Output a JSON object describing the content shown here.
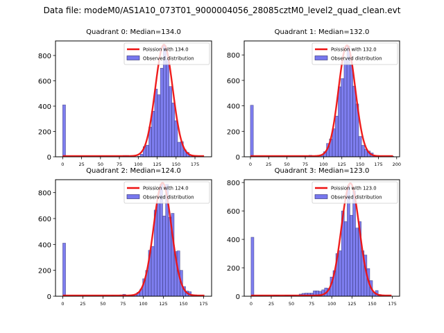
{
  "figure": {
    "suptitle": "Data file: modeM0/AS1A10_073T01_9000004056_28085cztM0_level2_quad_clean.evt"
  },
  "colors": {
    "bar_fill": "#7777ee",
    "bar_edge": "#2a2a6a",
    "fit_line": "#ee1111"
  },
  "chart_data": [
    {
      "type": "bar",
      "title": "Quadrant 0: Median=134.0",
      "xlabel": "",
      "ylabel": "",
      "xlim": [
        -9.5,
        197
      ],
      "ylim": [
        0,
        915
      ],
      "xticks": [
        0,
        25,
        50,
        75,
        100,
        125,
        150,
        175
      ],
      "yticks": [
        0,
        200,
        400,
        600,
        800
      ],
      "legend": {
        "placement": "top-right",
        "entries": [
          "Poission with 134.0",
          "Observed distribution"
        ]
      },
      "bin_width": 3.8,
      "bins": [
        {
          "x": 0,
          "v": 410
        },
        {
          "x": 79.8,
          "v": 10
        },
        {
          "x": 83.6,
          "v": 10
        },
        {
          "x": 98.8,
          "v": 4
        },
        {
          "x": 102.6,
          "v": 20
        },
        {
          "x": 106.4,
          "v": 80
        },
        {
          "x": 110.2,
          "v": 92
        },
        {
          "x": 114.0,
          "v": 235
        },
        {
          "x": 117.8,
          "v": 360
        },
        {
          "x": 121.6,
          "v": 535
        },
        {
          "x": 125.4,
          "v": 490
        },
        {
          "x": 129.2,
          "v": 700
        },
        {
          "x": 133.0,
          "v": 880
        },
        {
          "x": 136.8,
          "v": 770
        },
        {
          "x": 140.6,
          "v": 555
        },
        {
          "x": 144.4,
          "v": 425
        },
        {
          "x": 148.2,
          "v": 285
        },
        {
          "x": 152.0,
          "v": 115
        },
        {
          "x": 155.8,
          "v": 120
        },
        {
          "x": 159.6,
          "v": 55
        },
        {
          "x": 163.4,
          "v": 35
        },
        {
          "x": 167.2,
          "v": 10
        },
        {
          "x": 171.0,
          "v": 5
        }
      ],
      "fit": {
        "label": "Poission with 134.0",
        "mean": 134.0,
        "peak": 880,
        "x_range": [
          0,
          187
        ]
      }
    },
    {
      "type": "bar",
      "title": "Quadrant 1: Median=132.0",
      "xlabel": "",
      "ylabel": "",
      "xlim": [
        -8.5,
        204
      ],
      "ylim": [
        0,
        910
      ],
      "xticks": [
        0,
        25,
        50,
        75,
        100,
        125,
        150,
        175,
        200
      ],
      "yticks": [
        0,
        200,
        400,
        600,
        800
      ],
      "legend": {
        "placement": "top-right",
        "entries": [
          "Poission with 132.0",
          "Observed distribution"
        ]
      },
      "bin_width": 4.0,
      "bins": [
        {
          "x": 0,
          "v": 405
        },
        {
          "x": 68,
          "v": 5
        },
        {
          "x": 72,
          "v": 5
        },
        {
          "x": 80,
          "v": 12
        },
        {
          "x": 96,
          "v": 10
        },
        {
          "x": 100,
          "v": 40
        },
        {
          "x": 104,
          "v": 105
        },
        {
          "x": 108,
          "v": 140
        },
        {
          "x": 112,
          "v": 220
        },
        {
          "x": 116,
          "v": 320
        },
        {
          "x": 120,
          "v": 550
        },
        {
          "x": 124,
          "v": 615
        },
        {
          "x": 128,
          "v": 760
        },
        {
          "x": 132,
          "v": 870
        },
        {
          "x": 136,
          "v": 720
        },
        {
          "x": 140,
          "v": 555
        },
        {
          "x": 144,
          "v": 415
        },
        {
          "x": 148,
          "v": 160
        },
        {
          "x": 152,
          "v": 90
        },
        {
          "x": 156,
          "v": 60
        },
        {
          "x": 160,
          "v": 45
        },
        {
          "x": 164,
          "v": 30
        },
        {
          "x": 168,
          "v": 10
        },
        {
          "x": 176,
          "v": 4
        },
        {
          "x": 192,
          "v": 4
        }
      ],
      "fit": {
        "label": "Poission with 132.0",
        "mean": 132.0,
        "peak": 870,
        "x_range": [
          0,
          195
        ]
      }
    },
    {
      "type": "bar",
      "title": "Quadrant 2: Median=124.0",
      "xlabel": "",
      "ylabel": "",
      "xlim": [
        -9,
        185
      ],
      "ylim": [
        0,
        900
      ],
      "xticks": [
        0,
        25,
        50,
        75,
        100,
        125,
        150,
        175
      ],
      "yticks": [
        0,
        200,
        400,
        600,
        800
      ],
      "legend": {
        "placement": "top-right",
        "entries": [
          "Poission with 124.0",
          "Observed distribution"
        ]
      },
      "bin_width": 3.55,
      "bins": [
        {
          "x": 0,
          "v": 410
        },
        {
          "x": 60.4,
          "v": 4
        },
        {
          "x": 71.0,
          "v": 10
        },
        {
          "x": 74.6,
          "v": 15
        },
        {
          "x": 81.7,
          "v": 8
        },
        {
          "x": 85.2,
          "v": 8
        },
        {
          "x": 88.8,
          "v": 10
        },
        {
          "x": 92.3,
          "v": 30
        },
        {
          "x": 95.9,
          "v": 55
        },
        {
          "x": 99.4,
          "v": 135
        },
        {
          "x": 103.0,
          "v": 200
        },
        {
          "x": 106.5,
          "v": 355
        },
        {
          "x": 110.1,
          "v": 385
        },
        {
          "x": 113.6,
          "v": 665
        },
        {
          "x": 117.2,
          "v": 720
        },
        {
          "x": 120.7,
          "v": 865
        },
        {
          "x": 124.3,
          "v": 620
        },
        {
          "x": 127.8,
          "v": 865
        },
        {
          "x": 131.4,
          "v": 610
        },
        {
          "x": 134.9,
          "v": 640
        },
        {
          "x": 138.5,
          "v": 345
        },
        {
          "x": 142.0,
          "v": 350
        },
        {
          "x": 145.6,
          "v": 200
        },
        {
          "x": 149.1,
          "v": 75
        },
        {
          "x": 152.7,
          "v": 40
        },
        {
          "x": 156.2,
          "v": 35
        },
        {
          "x": 159.8,
          "v": 12
        },
        {
          "x": 163.3,
          "v": 10
        },
        {
          "x": 166.9,
          "v": 4
        }
      ],
      "fit": {
        "label": "Poission with 124.0",
        "mean": 124.0,
        "peak": 870,
        "x_range": [
          0,
          176
        ]
      }
    },
    {
      "type": "bar",
      "title": "Quadrant 3: Median=123.0",
      "xlabel": "",
      "ylabel": "",
      "xlim": [
        -8.5,
        184
      ],
      "ylim": [
        0,
        820
      ],
      "xticks": [
        0,
        25,
        50,
        75,
        100,
        125,
        150,
        175
      ],
      "yticks": [
        0,
        200,
        400,
        600,
        800
      ],
      "legend": {
        "placement": "top-right",
        "entries": [
          "Poission with 123.0",
          "Observed distribution"
        ]
      },
      "bin_width": 3.5,
      "bins": [
        {
          "x": 0,
          "v": 415
        },
        {
          "x": 10.5,
          "v": 3
        },
        {
          "x": 28.0,
          "v": 8
        },
        {
          "x": 31.5,
          "v": 8
        },
        {
          "x": 42.0,
          "v": 8
        },
        {
          "x": 45.5,
          "v": 8
        },
        {
          "x": 49.0,
          "v": 8
        },
        {
          "x": 52.5,
          "v": 8
        },
        {
          "x": 59.5,
          "v": 15
        },
        {
          "x": 63.0,
          "v": 20
        },
        {
          "x": 66.5,
          "v": 22
        },
        {
          "x": 70.0,
          "v": 22
        },
        {
          "x": 73.5,
          "v": 22
        },
        {
          "x": 77.0,
          "v": 38
        },
        {
          "x": 80.5,
          "v": 38
        },
        {
          "x": 84.0,
          "v": 35
        },
        {
          "x": 87.5,
          "v": 45
        },
        {
          "x": 91.0,
          "v": 58
        },
        {
          "x": 94.5,
          "v": 55
        },
        {
          "x": 98.0,
          "v": 135
        },
        {
          "x": 101.5,
          "v": 180
        },
        {
          "x": 105.0,
          "v": 300
        },
        {
          "x": 108.5,
          "v": 320
        },
        {
          "x": 112.0,
          "v": 600
        },
        {
          "x": 115.5,
          "v": 525
        },
        {
          "x": 119.0,
          "v": 780
        },
        {
          "x": 122.5,
          "v": 570
        },
        {
          "x": 126.0,
          "v": 740
        },
        {
          "x": 129.5,
          "v": 480
        },
        {
          "x": 133.0,
          "v": 525
        },
        {
          "x": 136.5,
          "v": 320
        },
        {
          "x": 140.0,
          "v": 290
        },
        {
          "x": 143.5,
          "v": 195
        },
        {
          "x": 147.0,
          "v": 110
        },
        {
          "x": 150.5,
          "v": 25
        },
        {
          "x": 154.0,
          "v": 40
        },
        {
          "x": 157.5,
          "v": 12
        },
        {
          "x": 161.0,
          "v": 4
        }
      ],
      "fit": {
        "label": "Poission with 123.0",
        "mean": 123.0,
        "peak": 790,
        "x_range": [
          0,
          174
        ]
      }
    }
  ]
}
